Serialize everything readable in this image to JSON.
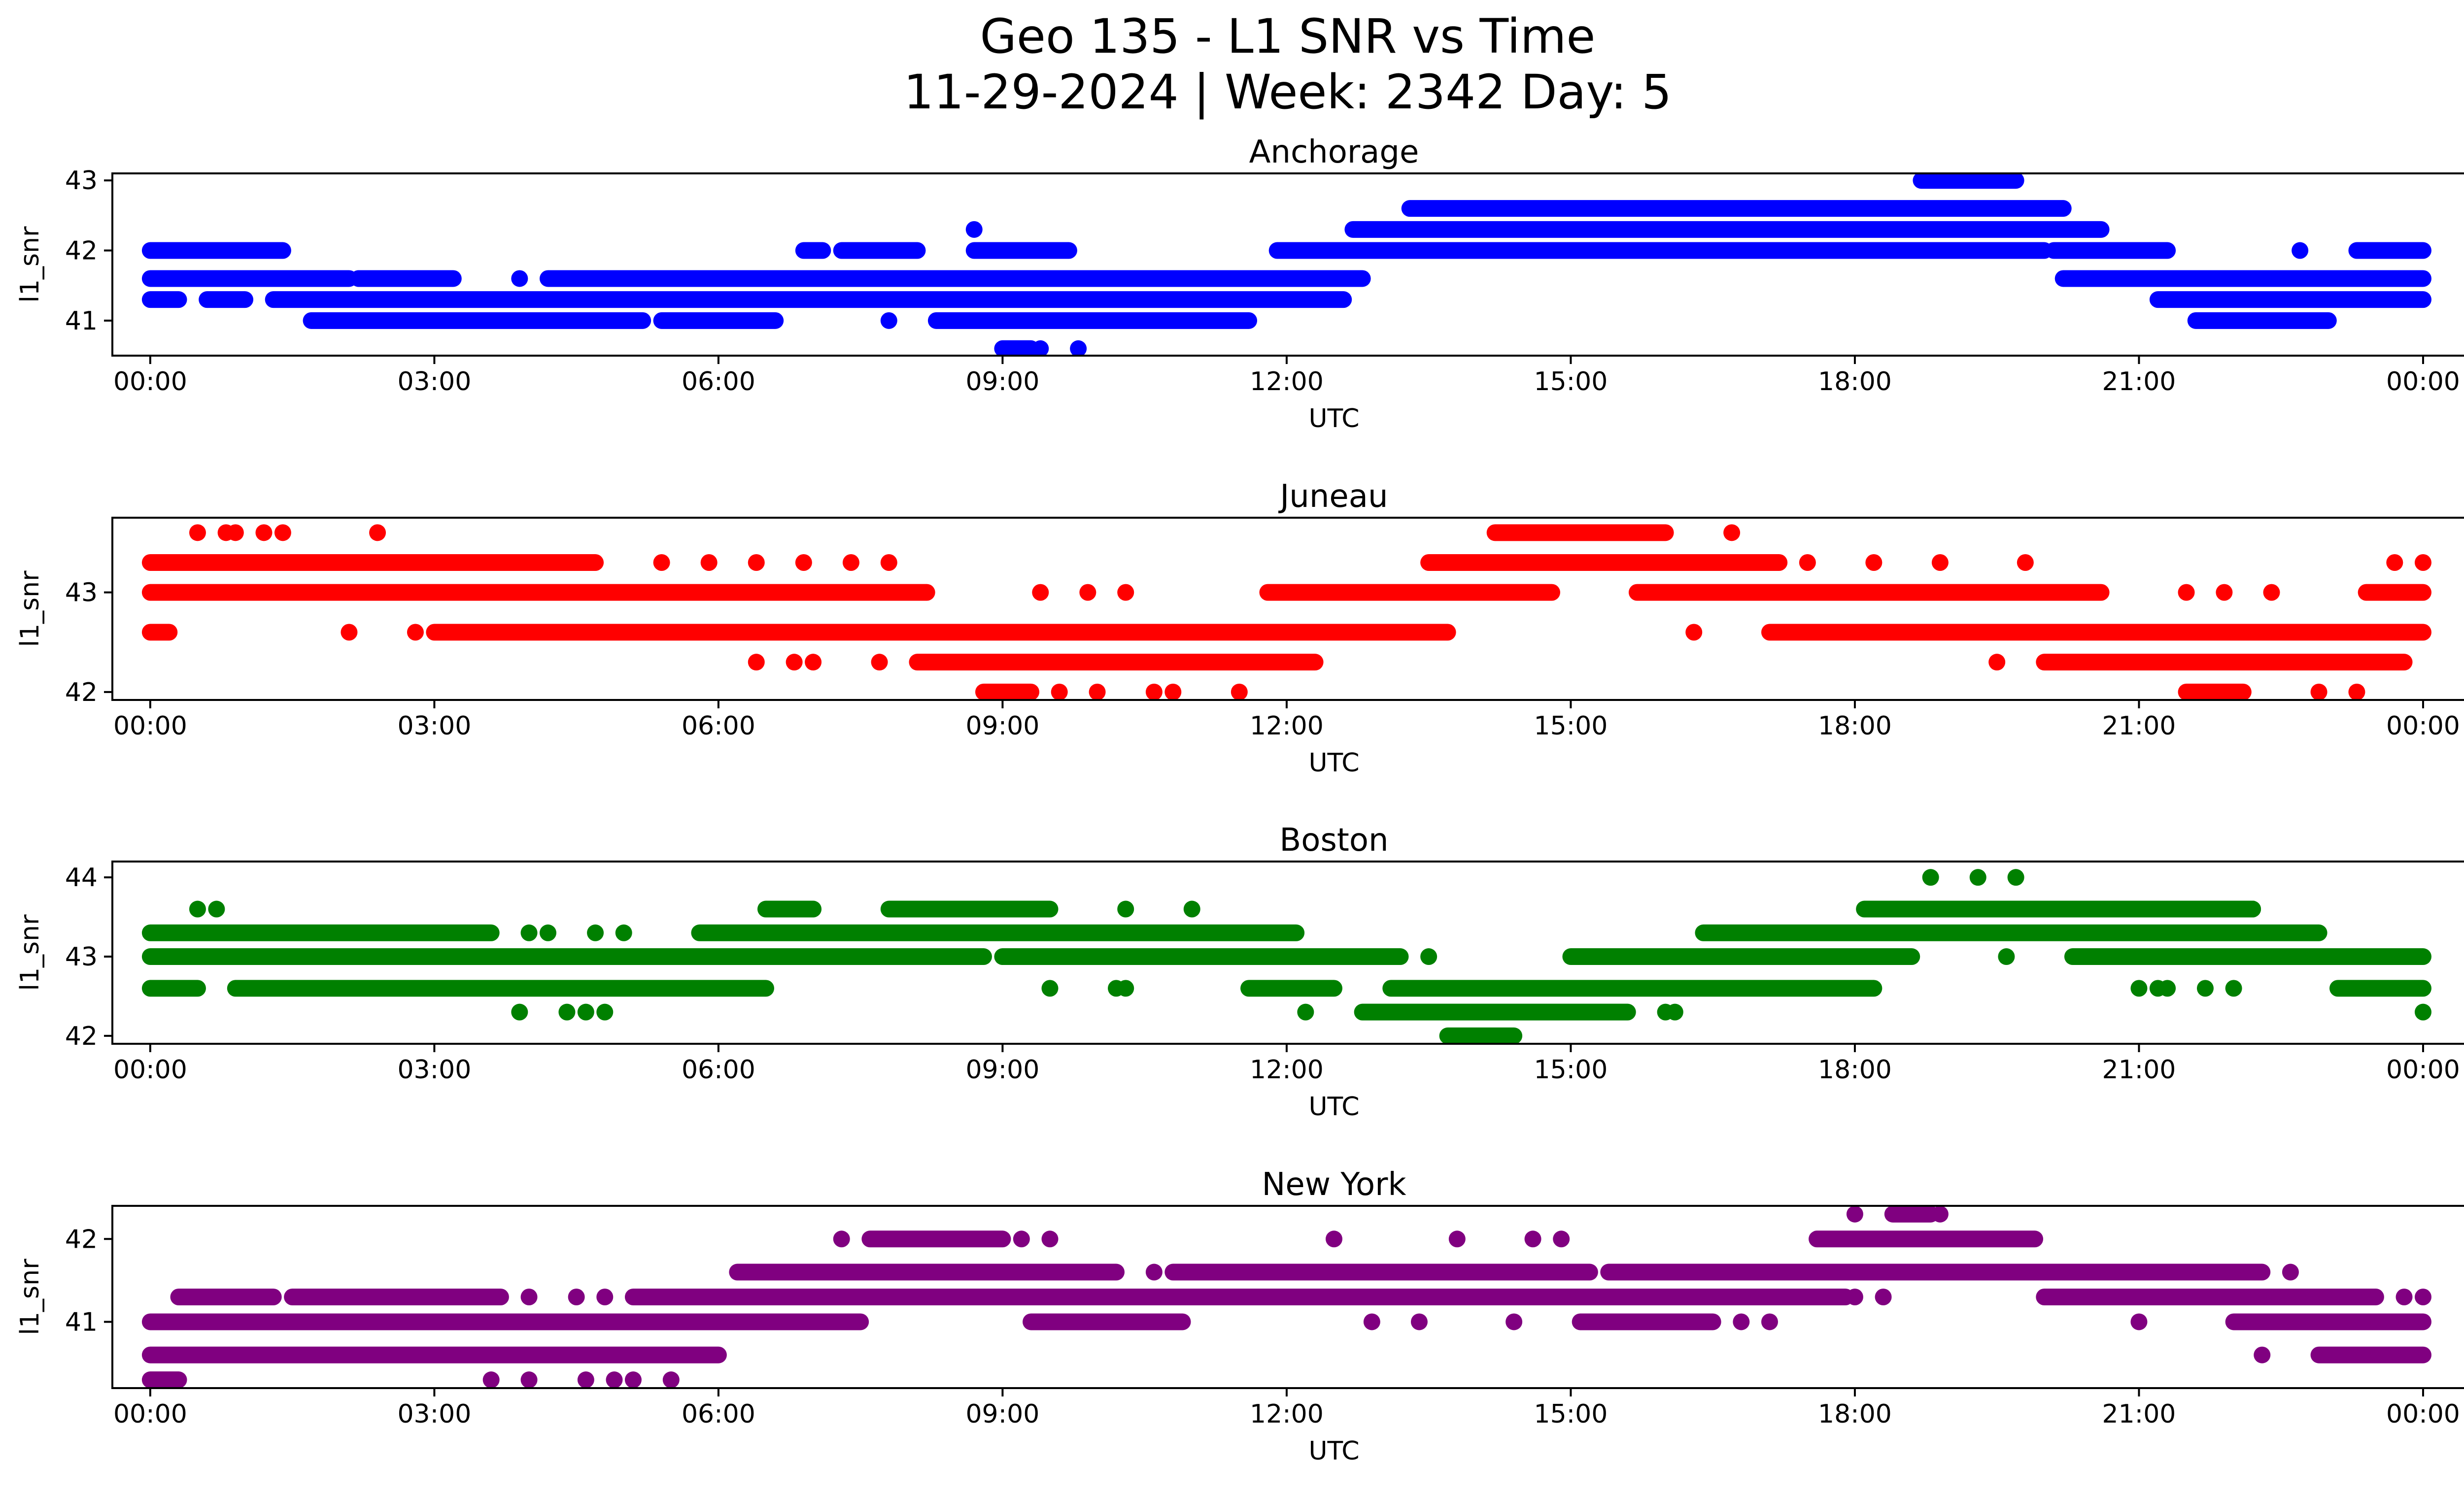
{
  "figure": {
    "title": "Geo 135 - L1 SNR vs Time",
    "subtitle": "11-29-2024 | Week: 2342 Day: 5"
  },
  "chart_data": [
    {
      "type": "scatter",
      "title": "Anchorage",
      "color": "#0000ff",
      "xlabel": "UTC",
      "ylabel": "l1_snr",
      "xlim": [
        -0.4,
        25.4
      ],
      "ylim": [
        40.5,
        43.1
      ],
      "x_ticks": [
        0,
        3,
        6,
        9,
        12,
        15,
        18,
        21,
        24
      ],
      "x_tick_labels": [
        "00:00",
        "03:00",
        "06:00",
        "09:00",
        "12:00",
        "15:00",
        "18:00",
        "21:00",
        "00:00"
      ],
      "y_ticks": [
        41,
        42,
        43
      ],
      "y_tick_labels": [
        "41",
        "42",
        "43"
      ],
      "segments": [
        {
          "y": 42.0,
          "x": [
            0.0,
            1.4
          ]
        },
        {
          "y": 41.6,
          "x": [
            0.0,
            2.1
          ]
        },
        {
          "y": 41.3,
          "x": [
            0.0,
            0.3
          ]
        },
        {
          "y": 41.3,
          "x": [
            0.6,
            1.0
          ]
        },
        {
          "y": 41.3,
          "x": [
            1.3,
            12.6
          ]
        },
        {
          "y": 41.0,
          "x": [
            1.7,
            5.2
          ]
        },
        {
          "y": 41.6,
          "x": [
            2.2,
            3.2
          ]
        },
        {
          "y": 41.6,
          "x": [
            4.2,
            12.8
          ]
        },
        {
          "y": 41.0,
          "x": [
            5.4,
            6.6
          ]
        },
        {
          "y": 42.0,
          "x": [
            6.9,
            7.1
          ]
        },
        {
          "y": 42.0,
          "x": [
            7.3,
            8.1
          ]
        },
        {
          "y": 41.0,
          "x": [
            8.3,
            11.6
          ]
        },
        {
          "y": 42.0,
          "x": [
            8.7,
            9.7
          ]
        },
        {
          "y": 40.6,
          "x": [
            9.0,
            9.3
          ]
        },
        {
          "y": 42.0,
          "x": [
            11.9,
            20.0
          ]
        },
        {
          "y": 42.3,
          "x": [
            12.7,
            20.6
          ]
        },
        {
          "y": 42.6,
          "x": [
            13.3,
            20.2
          ]
        },
        {
          "y": 43.0,
          "x": [
            18.7,
            19.7
          ]
        },
        {
          "y": 42.0,
          "x": [
            20.1,
            21.3
          ]
        },
        {
          "y": 41.6,
          "x": [
            20.2,
            24.0
          ]
        },
        {
          "y": 41.3,
          "x": [
            21.2,
            24.0
          ]
        },
        {
          "y": 41.0,
          "x": [
            21.6,
            23.0
          ]
        },
        {
          "y": 42.0,
          "x": [
            23.3,
            24.0
          ]
        }
      ],
      "points": [
        {
          "x": 2.2,
          "y": 41.6
        },
        {
          "x": 2.5,
          "y": 41.6
        },
        {
          "x": 3.1,
          "y": 41.6
        },
        {
          "x": 3.9,
          "y": 41.6
        },
        {
          "x": 7.8,
          "y": 41.0
        },
        {
          "x": 8.7,
          "y": 42.3
        },
        {
          "x": 9.4,
          "y": 40.6
        },
        {
          "x": 9.8,
          "y": 40.6
        },
        {
          "x": 22.7,
          "y": 42.0
        }
      ]
    },
    {
      "type": "scatter",
      "title": "Juneau",
      "color": "#ff0000",
      "xlabel": "UTC",
      "ylabel": "l1_snr",
      "xlim": [
        -0.4,
        25.4
      ],
      "ylim": [
        41.92,
        43.75
      ],
      "x_ticks": [
        0,
        3,
        6,
        9,
        12,
        15,
        18,
        21,
        24
      ],
      "x_tick_labels": [
        "00:00",
        "03:00",
        "06:00",
        "09:00",
        "12:00",
        "15:00",
        "18:00",
        "21:00",
        "00:00"
      ],
      "y_ticks": [
        42,
        43
      ],
      "y_tick_labels": [
        "42",
        "43"
      ],
      "segments": [
        {
          "y": 43.3,
          "x": [
            0.0,
            4.7
          ]
        },
        {
          "y": 43.0,
          "x": [
            0.0,
            8.2
          ]
        },
        {
          "y": 42.6,
          "x": [
            0.0,
            0.2
          ]
        },
        {
          "y": 42.6,
          "x": [
            3.0,
            13.7
          ]
        },
        {
          "y": 42.3,
          "x": [
            8.1,
            12.3
          ]
        },
        {
          "y": 42.0,
          "x": [
            8.8,
            9.3
          ]
        },
        {
          "y": 43.0,
          "x": [
            11.8,
            14.8
          ]
        },
        {
          "y": 43.3,
          "x": [
            13.5,
            17.2
          ]
        },
        {
          "y": 43.6,
          "x": [
            14.2,
            16.0
          ]
        },
        {
          "y": 43.0,
          "x": [
            15.7,
            20.6
          ]
        },
        {
          "y": 42.6,
          "x": [
            17.1,
            24.0
          ]
        },
        {
          "y": 42.3,
          "x": [
            20.0,
            23.8
          ]
        },
        {
          "y": 42.0,
          "x": [
            21.5,
            22.1
          ]
        },
        {
          "y": 43.0,
          "x": [
            23.4,
            24.0
          ]
        }
      ],
      "points": [
        {
          "x": 0.5,
          "y": 43.6
        },
        {
          "x": 0.8,
          "y": 43.6
        },
        {
          "x": 0.9,
          "y": 43.6
        },
        {
          "x": 1.2,
          "y": 43.6
        },
        {
          "x": 1.4,
          "y": 43.6
        },
        {
          "x": 2.4,
          "y": 43.6
        },
        {
          "x": 2.1,
          "y": 42.6
        },
        {
          "x": 2.8,
          "y": 42.6
        },
        {
          "x": 5.4,
          "y": 43.3
        },
        {
          "x": 5.9,
          "y": 43.3
        },
        {
          "x": 6.4,
          "y": 43.3
        },
        {
          "x": 6.9,
          "y": 43.3
        },
        {
          "x": 7.4,
          "y": 43.3
        },
        {
          "x": 7.8,
          "y": 43.3
        },
        {
          "x": 6.4,
          "y": 42.3
        },
        {
          "x": 6.8,
          "y": 42.3
        },
        {
          "x": 7.0,
          "y": 42.3
        },
        {
          "x": 7.7,
          "y": 42.3
        },
        {
          "x": 9.4,
          "y": 43.0
        },
        {
          "x": 9.9,
          "y": 43.0
        },
        {
          "x": 10.3,
          "y": 43.0
        },
        {
          "x": 9.6,
          "y": 42.0
        },
        {
          "x": 10.0,
          "y": 42.0
        },
        {
          "x": 10.6,
          "y": 42.0
        },
        {
          "x": 10.8,
          "y": 42.0
        },
        {
          "x": 11.5,
          "y": 42.0
        },
        {
          "x": 16.7,
          "y": 43.6
        },
        {
          "x": 16.3,
          "y": 42.6
        },
        {
          "x": 17.5,
          "y": 43.3
        },
        {
          "x": 18.2,
          "y": 43.3
        },
        {
          "x": 18.9,
          "y": 43.3
        },
        {
          "x": 19.8,
          "y": 43.3
        },
        {
          "x": 19.5,
          "y": 42.3
        },
        {
          "x": 21.5,
          "y": 43.0
        },
        {
          "x": 21.9,
          "y": 43.0
        },
        {
          "x": 22.4,
          "y": 43.0
        },
        {
          "x": 22.9,
          "y": 42.0
        },
        {
          "x": 23.3,
          "y": 42.0
        },
        {
          "x": 23.7,
          "y": 43.3
        },
        {
          "x": 24.0,
          "y": 43.3
        }
      ]
    },
    {
      "type": "scatter",
      "title": "Boston",
      "color": "#008000",
      "xlabel": "UTC",
      "ylabel": "l1_snr",
      "xlim": [
        -0.4,
        25.4
      ],
      "ylim": [
        41.9,
        44.2
      ],
      "x_ticks": [
        0,
        3,
        6,
        9,
        12,
        15,
        18,
        21,
        24
      ],
      "x_tick_labels": [
        "00:00",
        "03:00",
        "06:00",
        "09:00",
        "12:00",
        "15:00",
        "18:00",
        "21:00",
        "00:00"
      ],
      "y_ticks": [
        42,
        43,
        44
      ],
      "y_tick_labels": [
        "42",
        "43",
        "44"
      ],
      "segments": [
        {
          "y": 43.3,
          "x": [
            0.0,
            3.6
          ]
        },
        {
          "y": 43.0,
          "x": [
            0.0,
            8.8
          ]
        },
        {
          "y": 42.6,
          "x": [
            0.0,
            0.5
          ]
        },
        {
          "y": 42.6,
          "x": [
            0.9,
            6.5
          ]
        },
        {
          "y": 43.3,
          "x": [
            5.8,
            12.1
          ]
        },
        {
          "y": 43.6,
          "x": [
            6.5,
            7.0
          ]
        },
        {
          "y": 43.6,
          "x": [
            7.8,
            9.5
          ]
        },
        {
          "y": 43.0,
          "x": [
            9.0,
            13.2
          ]
        },
        {
          "y": 42.6,
          "x": [
            11.6,
            12.5
          ]
        },
        {
          "y": 42.3,
          "x": [
            12.8,
            15.6
          ]
        },
        {
          "y": 42.6,
          "x": [
            13.1,
            18.2
          ]
        },
        {
          "y": 42.0,
          "x": [
            13.7,
            14.4
          ]
        },
        {
          "y": 43.0,
          "x": [
            15.0,
            18.6
          ]
        },
        {
          "y": 43.3,
          "x": [
            16.4,
            22.9
          ]
        },
        {
          "y": 43.6,
          "x": [
            18.1,
            22.2
          ]
        },
        {
          "y": 43.0,
          "x": [
            20.3,
            24.0
          ]
        },
        {
          "y": 42.6,
          "x": [
            23.1,
            24.0
          ]
        }
      ],
      "points": [
        {
          "x": 0.5,
          "y": 43.6
        },
        {
          "x": 0.7,
          "y": 43.6
        },
        {
          "x": 3.9,
          "y": 42.3
        },
        {
          "x": 4.4,
          "y": 42.3
        },
        {
          "x": 4.6,
          "y": 42.3
        },
        {
          "x": 4.8,
          "y": 42.3
        },
        {
          "x": 4.0,
          "y": 43.3
        },
        {
          "x": 4.2,
          "y": 43.3
        },
        {
          "x": 4.7,
          "y": 43.3
        },
        {
          "x": 5.0,
          "y": 43.3
        },
        {
          "x": 9.5,
          "y": 42.6
        },
        {
          "x": 10.2,
          "y": 42.6
        },
        {
          "x": 10.3,
          "y": 42.6
        },
        {
          "x": 10.3,
          "y": 43.6
        },
        {
          "x": 11.0,
          "y": 43.6
        },
        {
          "x": 13.5,
          "y": 43.0
        },
        {
          "x": 12.2,
          "y": 42.3
        },
        {
          "x": 16.0,
          "y": 42.3
        },
        {
          "x": 16.1,
          "y": 42.3
        },
        {
          "x": 18.8,
          "y": 44.0
        },
        {
          "x": 19.3,
          "y": 44.0
        },
        {
          "x": 19.7,
          "y": 44.0
        },
        {
          "x": 21.0,
          "y": 42.6
        },
        {
          "x": 21.2,
          "y": 42.6
        },
        {
          "x": 21.7,
          "y": 42.6
        },
        {
          "x": 22.0,
          "y": 42.6
        },
        {
          "x": 21.3,
          "y": 42.6
        },
        {
          "x": 22.2,
          "y": 43.6
        },
        {
          "x": 21.8,
          "y": 43.6
        },
        {
          "x": 19.6,
          "y": 43.0
        },
        {
          "x": 24.0,
          "y": 42.3
        }
      ]
    },
    {
      "type": "scatter",
      "title": "New York",
      "color": "#800080",
      "xlabel": "UTC",
      "ylabel": "l1_snr",
      "xlim": [
        -0.4,
        25.4
      ],
      "ylim": [
        40.2,
        42.4
      ],
      "x_ticks": [
        0,
        3,
        6,
        9,
        12,
        15,
        18,
        21,
        24
      ],
      "x_tick_labels": [
        "00:00",
        "03:00",
        "06:00",
        "09:00",
        "12:00",
        "15:00",
        "18:00",
        "21:00",
        "00:00"
      ],
      "y_ticks": [
        41,
        42
      ],
      "y_tick_labels": [
        "41",
        "42"
      ],
      "segments": [
        {
          "y": 41.0,
          "x": [
            0.0,
            7.5
          ]
        },
        {
          "y": 40.6,
          "x": [
            0.0,
            6.0
          ]
        },
        {
          "y": 40.3,
          "x": [
            0.0,
            0.3
          ]
        },
        {
          "y": 41.3,
          "x": [
            0.3,
            1.3
          ]
        },
        {
          "y": 41.3,
          "x": [
            1.5,
            3.7
          ]
        },
        {
          "y": 41.3,
          "x": [
            5.1,
            17.9
          ]
        },
        {
          "y": 41.6,
          "x": [
            6.2,
            10.2
          ]
        },
        {
          "y": 42.0,
          "x": [
            7.6,
            9.0
          ]
        },
        {
          "y": 41.0,
          "x": [
            9.3,
            10.9
          ]
        },
        {
          "y": 41.6,
          "x": [
            10.8,
            15.2
          ]
        },
        {
          "y": 41.0,
          "x": [
            15.1,
            16.5
          ]
        },
        {
          "y": 41.6,
          "x": [
            15.4,
            22.3
          ]
        },
        {
          "y": 42.0,
          "x": [
            17.6,
            19.9
          ]
        },
        {
          "y": 42.3,
          "x": [
            18.4,
            18.8
          ]
        },
        {
          "y": 41.3,
          "x": [
            20.0,
            23.5
          ]
        },
        {
          "y": 41.0,
          "x": [
            22.0,
            24.0
          ]
        },
        {
          "y": 40.6,
          "x": [
            22.9,
            24.0
          ]
        }
      ],
      "points": [
        {
          "x": 3.6,
          "y": 40.3
        },
        {
          "x": 4.0,
          "y": 40.3
        },
        {
          "x": 4.6,
          "y": 40.3
        },
        {
          "x": 4.9,
          "y": 40.3
        },
        {
          "x": 5.1,
          "y": 40.3
        },
        {
          "x": 5.5,
          "y": 40.3
        },
        {
          "x": 4.0,
          "y": 41.3
        },
        {
          "x": 4.5,
          "y": 41.3
        },
        {
          "x": 4.8,
          "y": 41.3
        },
        {
          "x": 7.3,
          "y": 42.0
        },
        {
          "x": 9.2,
          "y": 42.0
        },
        {
          "x": 9.5,
          "y": 42.0
        },
        {
          "x": 10.6,
          "y": 41.6
        },
        {
          "x": 12.5,
          "y": 42.0
        },
        {
          "x": 13.8,
          "y": 42.0
        },
        {
          "x": 14.6,
          "y": 42.0
        },
        {
          "x": 14.9,
          "y": 42.0
        },
        {
          "x": 12.9,
          "y": 41.0
        },
        {
          "x": 13.4,
          "y": 41.0
        },
        {
          "x": 14.4,
          "y": 41.0
        },
        {
          "x": 16.8,
          "y": 41.0
        },
        {
          "x": 17.1,
          "y": 41.0
        },
        {
          "x": 18.0,
          "y": 41.3
        },
        {
          "x": 18.3,
          "y": 41.3
        },
        {
          "x": 18.0,
          "y": 42.3
        },
        {
          "x": 18.9,
          "y": 42.3
        },
        {
          "x": 21.0,
          "y": 41.0
        },
        {
          "x": 22.6,
          "y": 41.6
        },
        {
          "x": 22.3,
          "y": 40.6
        },
        {
          "x": 23.8,
          "y": 41.3
        },
        {
          "x": 24.0,
          "y": 41.3
        }
      ]
    }
  ]
}
